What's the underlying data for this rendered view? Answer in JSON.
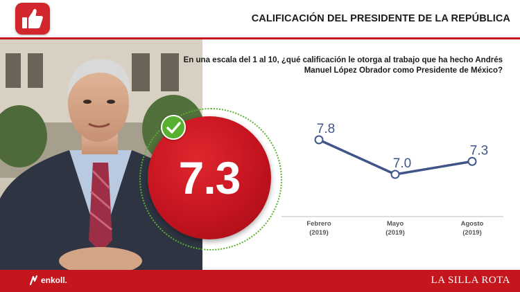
{
  "header": {
    "title": "CALIFICACIÓN DEL PRESIDENTE DE LA REPÚBLICA",
    "logo_icon": "thumbs-up-icon"
  },
  "question": "En una escala del 1 al 10, ¿qué calificación le otorga al trabajo que ha hecho Andrés Manuel López Obrador como Presidente de México?",
  "score": {
    "value": "7.3",
    "badge_icon": "check-icon"
  },
  "chart_data": {
    "type": "line",
    "categories": [
      "Febrero (2019)",
      "Mayo (2019)",
      "Agosto (2019)"
    ],
    "category_lines": [
      [
        "Febrero",
        "(2019)"
      ],
      [
        "Mayo",
        "(2019)"
      ],
      [
        "Agosto",
        "(2019)"
      ]
    ],
    "values": [
      7.8,
      7.0,
      7.3
    ],
    "value_labels": [
      "7.8",
      "7.0",
      "7.3"
    ],
    "title": "",
    "xlabel": "",
    "ylabel": "",
    "ylim": [
      6.5,
      8.2
    ],
    "grid": false,
    "line_color": "#3f5587"
  },
  "footer": {
    "left_brand": "enkoll.",
    "right_brand": "LA SILLA ROTA"
  },
  "colors": {
    "accent_red": "#c4161c",
    "check_green": "#58b030"
  }
}
